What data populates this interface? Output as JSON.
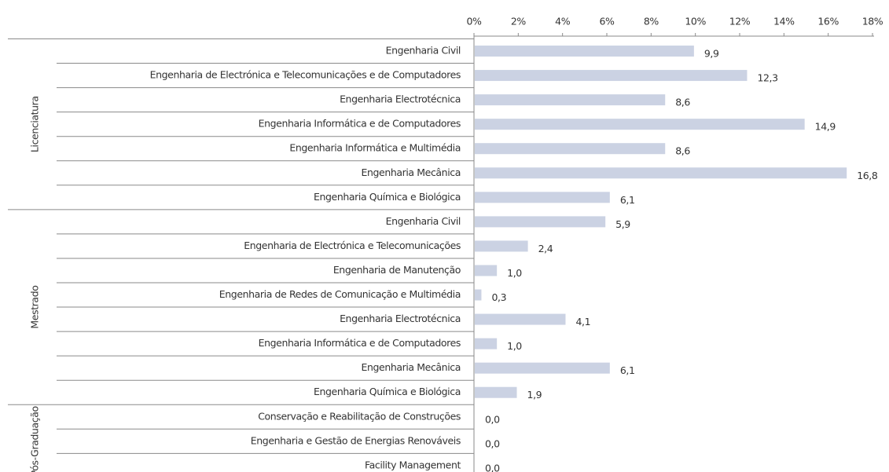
{
  "chart_data": {
    "type": "bar",
    "orientation": "horizontal",
    "color": "#cbd2e3",
    "xlim": [
      0,
      18
    ],
    "xticks": [
      {
        "value": 0,
        "label": "0%"
      },
      {
        "value": 2,
        "label": "2%"
      },
      {
        "value": 4,
        "label": "4%"
      },
      {
        "value": 6,
        "label": "6%"
      },
      {
        "value": 8,
        "label": "8%"
      },
      {
        "value": 10,
        "label": "10%"
      },
      {
        "value": 12,
        "label": "12%"
      },
      {
        "value": 14,
        "label": "14%"
      },
      {
        "value": 16,
        "label": "16%"
      },
      {
        "value": 18,
        "label": "18%"
      }
    ],
    "groups": [
      {
        "name": "Licenciatura",
        "categories": [
          "Engenharia Civil",
          "Engenharia de Electrónica e Telecomunicações e de Computadores",
          "Engenharia Electrotécnica",
          "Engenharia Informática e de Computadores",
          "Engenharia Informática e Multimédia",
          "Engenharia Mecânica",
          "Engenharia Química e Biológica"
        ],
        "values": [
          9.9,
          12.3,
          8.6,
          14.9,
          8.6,
          16.8,
          6.1
        ],
        "value_labels": [
          "9,9",
          "12,3",
          "8,6",
          "14,9",
          "8,6",
          "16,8",
          "6,1"
        ]
      },
      {
        "name": "Mestrado",
        "categories": [
          "Engenharia Civil",
          "Engenharia de Electrónica e Telecomunicações",
          "Engenharia de Manutenção",
          "Engenharia de Redes de Comunicação e Multimédia",
          "Engenharia Electrotécnica",
          "Engenharia Informática e de Computadores",
          "Engenharia Mecânica",
          "Engenharia Química e Biológica"
        ],
        "values": [
          5.9,
          2.4,
          1.0,
          0.3,
          4.1,
          1.0,
          6.1,
          1.9
        ],
        "value_labels": [
          "5,9",
          "2,4",
          "1,0",
          "0,3",
          "4,1",
          "1,0",
          "6,1",
          "1,9"
        ]
      },
      {
        "name": "Pós-Graduação",
        "categories": [
          "Conservação e Reabilitação de Construções",
          "Engenharia e Gestão de Energias Renováveis",
          "Facility Management"
        ],
        "values": [
          0.0,
          0.0,
          0.0
        ],
        "value_labels": [
          "0,0",
          "0,0",
          "0,0"
        ]
      }
    ]
  }
}
